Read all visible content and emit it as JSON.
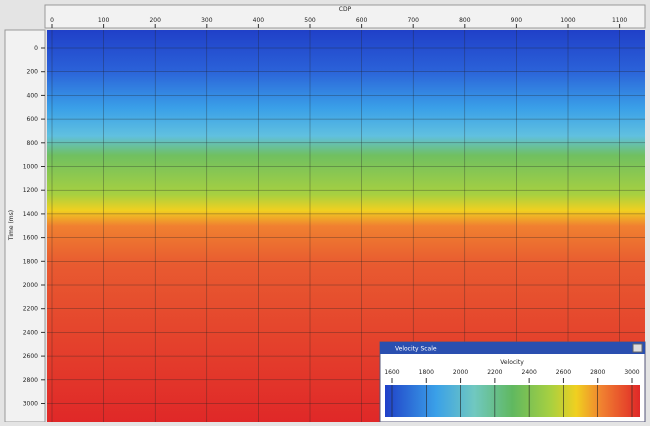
{
  "top_axis": {
    "title": "CDP",
    "ticks": [
      "0",
      "100",
      "200",
      "300",
      "400",
      "500",
      "600",
      "700",
      "800",
      "900",
      "1000",
      "1100"
    ]
  },
  "left_axis": {
    "title": "Time (ms)",
    "ticks": [
      "0",
      "200",
      "400",
      "600",
      "800",
      "1000",
      "1200",
      "1400",
      "1600",
      "1800",
      "2000",
      "2200",
      "2400",
      "2600",
      "2800",
      "3000"
    ]
  },
  "velocity_window": {
    "title": "Velocity Scale",
    "label": "Velocity",
    "ticks": [
      "1600",
      "1800",
      "2000",
      "2200",
      "2400",
      "2600",
      "2800",
      "3000"
    ]
  }
}
